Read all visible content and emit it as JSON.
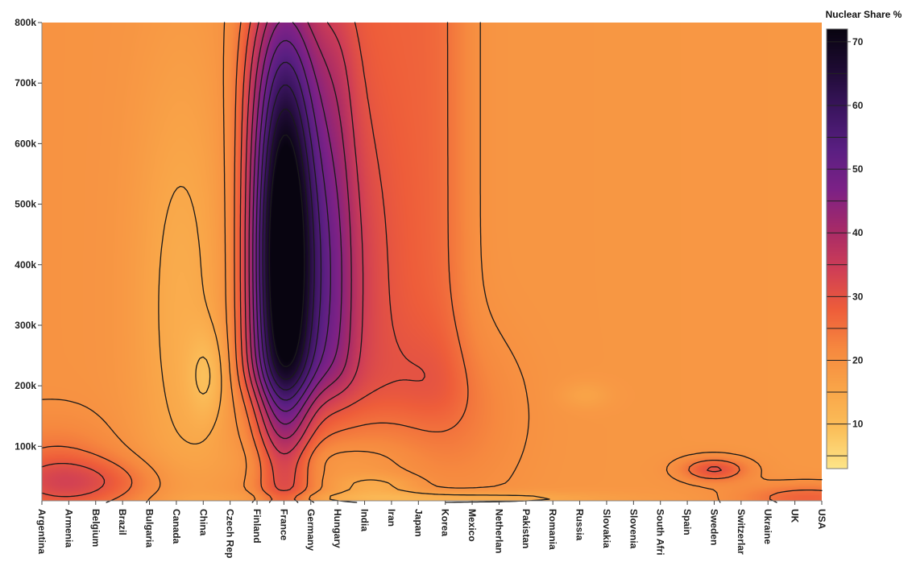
{
  "chart_data": {
    "type": "heatmap",
    "style": "contour",
    "categories": [
      "Argentina",
      "Armenia",
      "Belgium",
      "Brazil",
      "Bulgaria",
      "Canada",
      "China",
      "Czech Rep",
      "Finland",
      "France",
      "Germany",
      "Hungary",
      "India",
      "Iran",
      "Japan",
      "Korea",
      "Mexico",
      "Netherlan",
      "Pakistan",
      "Romania",
      "Russia",
      "Slovakia",
      "Slovenia",
      "South Afri",
      "Spain",
      "Sweden",
      "Switzerlar",
      "Ukraine",
      "UK",
      "USA"
    ],
    "y_tick_labels": [
      "100k",
      "200k",
      "300k",
      "400k",
      "500k",
      "600k",
      "700k",
      "800k"
    ],
    "y_ticks": [
      100000,
      200000,
      300000,
      400000,
      500000,
      600000,
      700000,
      800000
    ],
    "ylim": [
      10000,
      800000
    ],
    "colorbar": {
      "title": "Nuclear Share %",
      "tick_labels": [
        "10",
        "20",
        "30",
        "40",
        "50",
        "60",
        "70"
      ],
      "ticks": [
        10,
        20,
        30,
        40,
        50,
        60,
        70
      ],
      "range": [
        3,
        72
      ],
      "levels": [
        5,
        10,
        15,
        20,
        25,
        30,
        35,
        40,
        45,
        50,
        55,
        60,
        65,
        70
      ],
      "colorscale": [
        "#fde68a",
        "#fbbf5a",
        "#f9a548",
        "#f6893f",
        "#ee5d3a",
        "#cf3e56",
        "#a62a68",
        "#7c2186",
        "#5a1f82",
        "#3b1560",
        "#1e0b33",
        "#080410"
      ]
    },
    "surface_features": [
      {
        "label": "France",
        "x_index": 9,
        "y": 420000,
        "value": 72
      },
      {
        "label": "Belgium",
        "x_index": 2,
        "y": 40000,
        "value": 35
      },
      {
        "label": "China",
        "x_index": 6,
        "y": 210000,
        "value": 5
      },
      {
        "label": "Korea",
        "x_index": 15,
        "y": 150000,
        "value": 30
      },
      {
        "label": "Russia",
        "x_index": 20,
        "y": 185000,
        "value": 17
      },
      {
        "label": "Sweden",
        "x_index": 25,
        "y": 60000,
        "value": 38
      },
      {
        "label": "India",
        "x_index": 12,
        "y": 35000,
        "value": 12
      },
      {
        "label": "Germany",
        "x_index": 10,
        "y": 80000,
        "value": 14
      }
    ]
  }
}
